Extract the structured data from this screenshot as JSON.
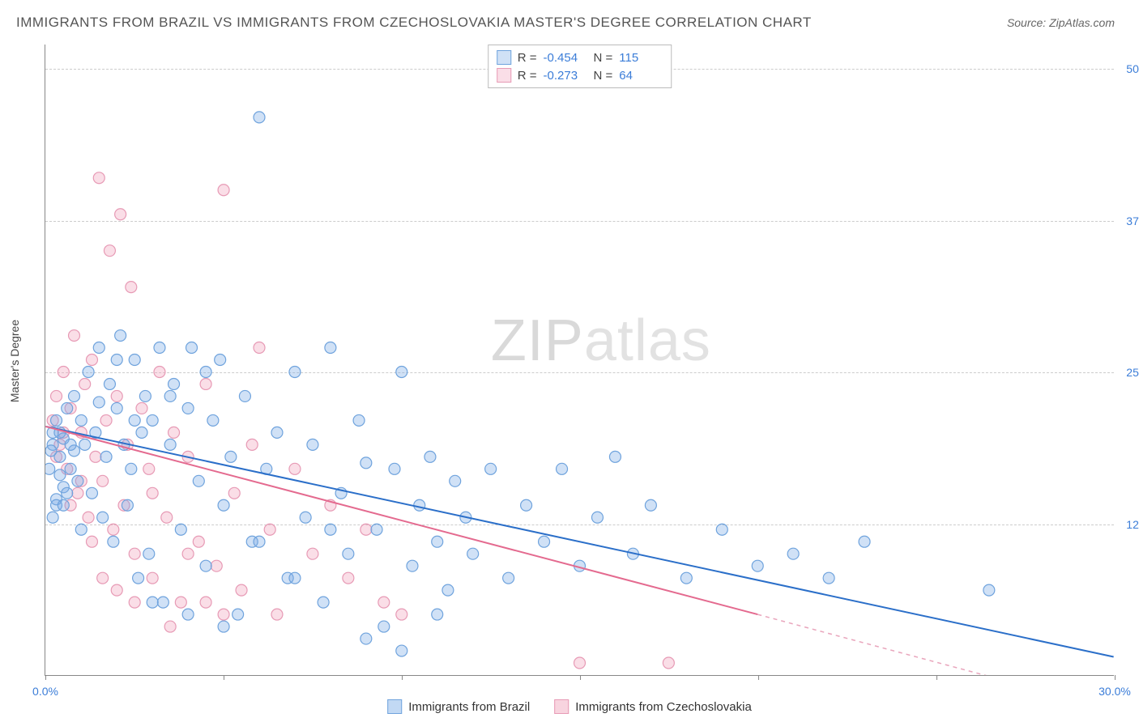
{
  "title": "IMMIGRANTS FROM BRAZIL VS IMMIGRANTS FROM CZECHOSLOVAKIA MASTER'S DEGREE CORRELATION CHART",
  "source": "Source: ZipAtlas.com",
  "watermark": {
    "zip": "ZIP",
    "atlas": "atlas"
  },
  "chart": {
    "type": "scatter",
    "xlim": [
      0,
      30
    ],
    "ylim": [
      0,
      52
    ],
    "xticks": [
      0,
      5,
      10,
      15,
      20,
      25,
      30
    ],
    "xtick_labels": {
      "0": "0.0%",
      "30": "30.0%"
    },
    "yticks": [
      12.5,
      25.0,
      37.5,
      50.0
    ],
    "ytick_labels": [
      "12.5%",
      "25.0%",
      "37.5%",
      "50.0%"
    ],
    "ylabel": "Master's Degree",
    "grid_color": "#cccccc",
    "background_color": "#ffffff",
    "marker_radius": 7,
    "axis_label_color": "#3b7dd8",
    "series": [
      {
        "name": "Immigrants from Brazil",
        "fill": "rgba(120,170,230,0.35)",
        "stroke": "#6fa3dd",
        "R": "-0.454",
        "N": "115",
        "trend": {
          "x1": 0,
          "y1": 20.5,
          "x2": 30,
          "y2": 1.5,
          "color": "#2b6fc9",
          "width": 2
        },
        "points": [
          [
            0.2,
            20
          ],
          [
            0.3,
            21
          ],
          [
            0.4,
            18
          ],
          [
            0.5,
            19.5
          ],
          [
            0.6,
            22
          ],
          [
            0.7,
            17
          ],
          [
            0.8,
            23
          ],
          [
            0.9,
            16
          ],
          [
            1.0,
            21
          ],
          [
            1.1,
            19
          ],
          [
            1.2,
            25
          ],
          [
            1.3,
            15
          ],
          [
            1.4,
            20
          ],
          [
            1.5,
            27
          ],
          [
            1.6,
            13
          ],
          [
            1.7,
            18
          ],
          [
            1.8,
            24
          ],
          [
            1.9,
            11
          ],
          [
            2.0,
            22
          ],
          [
            2.1,
            28
          ],
          [
            2.2,
            19
          ],
          [
            2.3,
            14
          ],
          [
            2.4,
            17
          ],
          [
            2.5,
            26
          ],
          [
            2.6,
            8
          ],
          [
            2.7,
            20
          ],
          [
            2.8,
            23
          ],
          [
            2.9,
            10
          ],
          [
            3.0,
            21
          ],
          [
            3.2,
            27
          ],
          [
            3.3,
            6
          ],
          [
            3.5,
            19
          ],
          [
            3.6,
            24
          ],
          [
            3.8,
            12
          ],
          [
            4.0,
            22
          ],
          [
            4.1,
            27
          ],
          [
            4.3,
            16
          ],
          [
            4.5,
            9
          ],
          [
            4.7,
            21
          ],
          [
            4.9,
            26
          ],
          [
            5.0,
            14
          ],
          [
            5.2,
            18
          ],
          [
            5.4,
            5
          ],
          [
            5.6,
            23
          ],
          [
            5.8,
            11
          ],
          [
            6.0,
            46
          ],
          [
            6.2,
            17
          ],
          [
            6.5,
            20
          ],
          [
            6.8,
            8
          ],
          [
            7.0,
            25
          ],
          [
            7.3,
            13
          ],
          [
            7.5,
            19
          ],
          [
            7.8,
            6
          ],
          [
            8.0,
            27
          ],
          [
            8.3,
            15
          ],
          [
            8.5,
            10
          ],
          [
            8.8,
            21
          ],
          [
            9.0,
            17.5
          ],
          [
            9.3,
            12
          ],
          [
            9.5,
            4
          ],
          [
            9.8,
            17
          ],
          [
            10.0,
            25
          ],
          [
            10.3,
            9
          ],
          [
            10.5,
            14
          ],
          [
            10.8,
            18
          ],
          [
            11.0,
            11
          ],
          [
            11.3,
            7
          ],
          [
            11.5,
            16
          ],
          [
            11.8,
            13
          ],
          [
            12.0,
            10
          ],
          [
            12.5,
            17
          ],
          [
            13.0,
            8
          ],
          [
            13.5,
            14
          ],
          [
            14.0,
            11
          ],
          [
            14.5,
            17
          ],
          [
            15.0,
            9
          ],
          [
            15.5,
            13
          ],
          [
            16.0,
            18
          ],
          [
            16.5,
            10
          ],
          [
            17.0,
            14
          ],
          [
            18.0,
            8
          ],
          [
            19.0,
            12
          ],
          [
            20.0,
            9
          ],
          [
            21.0,
            10
          ],
          [
            22.0,
            8
          ],
          [
            23.0,
            11
          ],
          [
            26.5,
            7
          ],
          [
            0.3,
            14.5
          ],
          [
            0.4,
            16.5
          ],
          [
            1.0,
            12
          ],
          [
            3.0,
            6
          ],
          [
            4.0,
            5
          ],
          [
            5.0,
            4
          ],
          [
            6.0,
            11
          ],
          [
            7.0,
            8
          ],
          [
            8.0,
            12
          ],
          [
            9.0,
            3
          ],
          [
            10.0,
            2
          ],
          [
            11.0,
            5
          ],
          [
            0.5,
            15.5
          ],
          [
            0.8,
            18.5
          ],
          [
            1.5,
            22.5
          ],
          [
            2.0,
            26
          ],
          [
            2.5,
            21
          ],
          [
            3.5,
            23
          ],
          [
            4.5,
            25
          ],
          [
            0.1,
            17
          ],
          [
            0.2,
            19
          ],
          [
            0.15,
            18.5
          ],
          [
            0.2,
            13
          ],
          [
            0.3,
            14
          ],
          [
            0.4,
            20
          ],
          [
            0.5,
            14
          ],
          [
            0.6,
            15
          ],
          [
            0.7,
            19
          ]
        ]
      },
      {
        "name": "Immigrants from Czechoslovakia",
        "fill": "rgba(240,160,185,0.35)",
        "stroke": "#e79ab5",
        "R": "-0.273",
        "N": "64",
        "trend": {
          "x1": 0,
          "y1": 20.5,
          "x2": 20,
          "y2": 5,
          "color": "#e46a8f",
          "width": 2
        },
        "trend_dashed": {
          "x1": 20,
          "y1": 5,
          "x2": 27,
          "y2": -0.5,
          "color": "#e9a5bc",
          "width": 1.5
        },
        "points": [
          [
            0.2,
            21
          ],
          [
            0.3,
            23
          ],
          [
            0.4,
            19
          ],
          [
            0.5,
            25
          ],
          [
            0.6,
            17
          ],
          [
            0.7,
            22
          ],
          [
            0.8,
            28
          ],
          [
            0.9,
            15
          ],
          [
            1.0,
            20
          ],
          [
            1.1,
            24
          ],
          [
            1.2,
            13
          ],
          [
            1.3,
            26
          ],
          [
            1.4,
            18
          ],
          [
            1.5,
            41
          ],
          [
            1.6,
            16
          ],
          [
            1.7,
            21
          ],
          [
            1.8,
            35
          ],
          [
            1.9,
            12
          ],
          [
            2.0,
            23
          ],
          [
            2.1,
            38
          ],
          [
            2.2,
            14
          ],
          [
            2.3,
            19
          ],
          [
            2.4,
            32
          ],
          [
            2.5,
            10
          ],
          [
            2.7,
            22
          ],
          [
            2.9,
            17
          ],
          [
            3.0,
            8
          ],
          [
            3.2,
            25
          ],
          [
            3.4,
            13
          ],
          [
            3.6,
            20
          ],
          [
            3.8,
            6
          ],
          [
            4.0,
            18
          ],
          [
            4.3,
            11
          ],
          [
            4.5,
            24
          ],
          [
            4.8,
            9
          ],
          [
            5.0,
            40
          ],
          [
            5.3,
            15
          ],
          [
            5.5,
            7
          ],
          [
            5.8,
            19
          ],
          [
            6.0,
            27
          ],
          [
            6.3,
            12
          ],
          [
            6.5,
            5
          ],
          [
            7.0,
            17
          ],
          [
            7.5,
            10
          ],
          [
            8.0,
            14
          ],
          [
            8.5,
            8
          ],
          [
            9.0,
            12
          ],
          [
            9.5,
            6
          ],
          [
            10.0,
            5
          ],
          [
            0.3,
            18
          ],
          [
            0.5,
            20
          ],
          [
            0.7,
            14
          ],
          [
            1.0,
            16
          ],
          [
            1.3,
            11
          ],
          [
            1.6,
            8
          ],
          [
            2.0,
            7
          ],
          [
            2.5,
            6
          ],
          [
            3.0,
            15
          ],
          [
            3.5,
            4
          ],
          [
            4.0,
            10
          ],
          [
            4.5,
            6
          ],
          [
            5.0,
            5
          ],
          [
            17.5,
            1
          ],
          [
            15.0,
            1
          ]
        ]
      }
    ]
  }
}
